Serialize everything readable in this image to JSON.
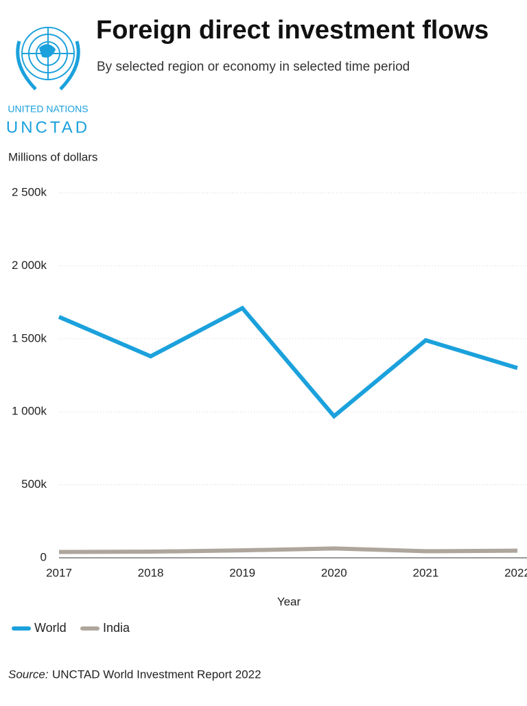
{
  "logo": {
    "line1": "UNITED NATIONS",
    "line2": "UNCTAD"
  },
  "chart_data": {
    "type": "line",
    "title": "Foreign direct investment flows",
    "subtitle": "By selected region or economy in selected time period",
    "y_label": "Millions of dollars",
    "x_label": "Year",
    "categories": [
      "2017",
      "2018",
      "2019",
      "2020",
      "2021",
      "2022"
    ],
    "series": [
      {
        "name": "World",
        "color": "#1ba1dc",
        "values": [
          1650000,
          1380000,
          1710000,
          970000,
          1490000,
          1300000
        ]
      },
      {
        "name": "India",
        "color": "#aea69c",
        "values": [
          40000,
          42000,
          51000,
          64000,
          45000,
          49000
        ]
      }
    ],
    "ylim": [
      0,
      2500000
    ],
    "yticks": [
      0,
      {
        "value": 500000,
        "label": "500k"
      },
      {
        "value": 1000000,
        "label": "1 000k"
      },
      {
        "value": 1500000,
        "label": "1 500k"
      },
      {
        "value": 2000000,
        "label": "2 000k"
      },
      {
        "value": 2500000,
        "label": "2 500k"
      }
    ],
    "grid": true,
    "source_prefix": "Source:",
    "source": "UNCTAD World Investment Report 2022"
  }
}
